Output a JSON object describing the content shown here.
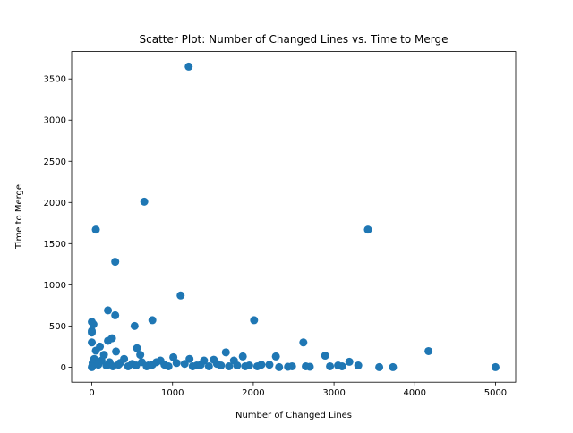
{
  "chart_data": {
    "type": "scatter",
    "title": "Scatter Plot: Number of Changed Lines vs. Time to Merge",
    "xlabel": "Number of Changed Lines",
    "ylabel": "Time to Merge",
    "color": "#1f77b4",
    "xlim": [
      -250,
      5250
    ],
    "ylim": [
      -182.5,
      3832.5
    ],
    "xticks": [
      0,
      1000,
      2000,
      3000,
      4000,
      5000
    ],
    "yticks": [
      0,
      500,
      1000,
      1500,
      2000,
      2500,
      3000,
      3500
    ],
    "x": [
      1200,
      650,
      50,
      3420,
      290,
      1100,
      200,
      290,
      750,
      2010,
      0,
      20,
      530,
      0,
      0,
      2620,
      0,
      200,
      250,
      4170,
      560,
      1660,
      2890,
      2280,
      1870,
      3190,
      1010,
      1210,
      1510,
      1390,
      1760,
      600,
      300,
      5000,
      3730,
      3560,
      3050,
      2950,
      2650,
      2700,
      2480,
      2430,
      2320,
      2100,
      2050,
      1950,
      1900,
      1700,
      1600,
      1450,
      1300,
      1150,
      900,
      800,
      700,
      400,
      350,
      150,
      100,
      50,
      30,
      10,
      0,
      5,
      80,
      120,
      180,
      220,
      260,
      330,
      450,
      500,
      550,
      620,
      680,
      750,
      850,
      950,
      1050,
      1250,
      1350,
      1550,
      1800,
      2200,
      3100,
      3300
    ],
    "y": [
      3650,
      2010,
      1670,
      1670,
      1280,
      870,
      690,
      630,
      570,
      570,
      550,
      520,
      500,
      440,
      420,
      300,
      300,
      320,
      350,
      195,
      230,
      180,
      140,
      130,
      130,
      65,
      120,
      100,
      90,
      80,
      80,
      150,
      190,
      0,
      0,
      0,
      20,
      10,
      10,
      5,
      10,
      5,
      0,
      30,
      10,
      20,
      10,
      10,
      20,
      10,
      20,
      40,
      30,
      60,
      20,
      100,
      50,
      150,
      250,
      200,
      100,
      50,
      0,
      10,
      30,
      80,
      20,
      60,
      10,
      30,
      10,
      40,
      20,
      60,
      10,
      30,
      80,
      10,
      50,
      10,
      30,
      40,
      20,
      30,
      10,
      20
    ]
  }
}
